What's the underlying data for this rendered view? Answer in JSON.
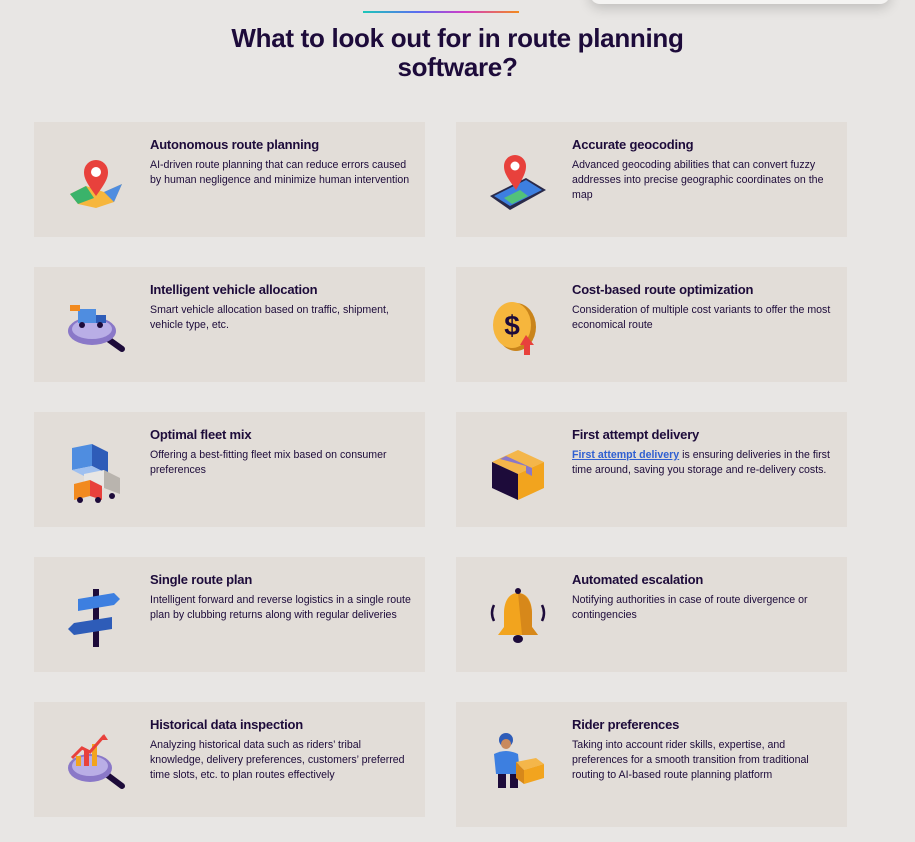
{
  "page": {
    "title": "What to look out for in route planning software?"
  },
  "colors": {
    "background": "#e8e6e4",
    "card": "#e2ddd8",
    "heading": "#1d0b3a",
    "link": "#2f5fd1"
  },
  "cards": [
    {
      "title": "Autonomous route planning",
      "desc": "AI-driven route planning that can reduce errors caused by human negligence and minimize human intervention",
      "icon": "map-pin-icon"
    },
    {
      "title": "Accurate geocoding",
      "desc": "Advanced geocoding abilities that can convert fuzzy addresses into precise geographic coordinates on the map",
      "icon": "phone-map-pin-icon"
    },
    {
      "title": "Intelligent vehicle allocation",
      "desc": "Smart vehicle allocation based on traffic, shipment, vehicle type, etc.",
      "icon": "truck-magnifier-icon"
    },
    {
      "title": "Cost-based route optimization",
      "desc": "Consideration of multiple cost variants to offer the most economical route",
      "icon": "dollar-coin-icon"
    },
    {
      "title": "Optimal fleet mix",
      "desc": "Offering a best-fitting fleet mix based on consumer preferences",
      "icon": "fleet-trucks-icon"
    },
    {
      "title": "First attempt delivery",
      "link": "First attempt delivery",
      "desc_rest": " is ensuring deliveries in the first time around, saving you storage and re-delivery costs.",
      "icon": "package-box-icon"
    },
    {
      "title": "Single route plan",
      "desc": "Intelligent forward and reverse logistics in a single route plan by clubbing returns along with regular deliveries",
      "icon": "signpost-icon"
    },
    {
      "title": "Automated escalation",
      "desc": "Notifying authorities in case of route divergence or contingencies",
      "icon": "bell-icon"
    },
    {
      "title": "Historical data inspection",
      "desc": "Analyzing historical data such as riders’ tribal knowledge, delivery preferences, customers’ preferred time slots, etc. to plan routes effectively",
      "icon": "chart-magnifier-icon"
    },
    {
      "title": "Rider preferences",
      "desc": "Taking into account rider skills, expertise, and preferences for a smooth transition from traditional routing to AI-based route planning platform",
      "icon": "rider-icon"
    }
  ]
}
